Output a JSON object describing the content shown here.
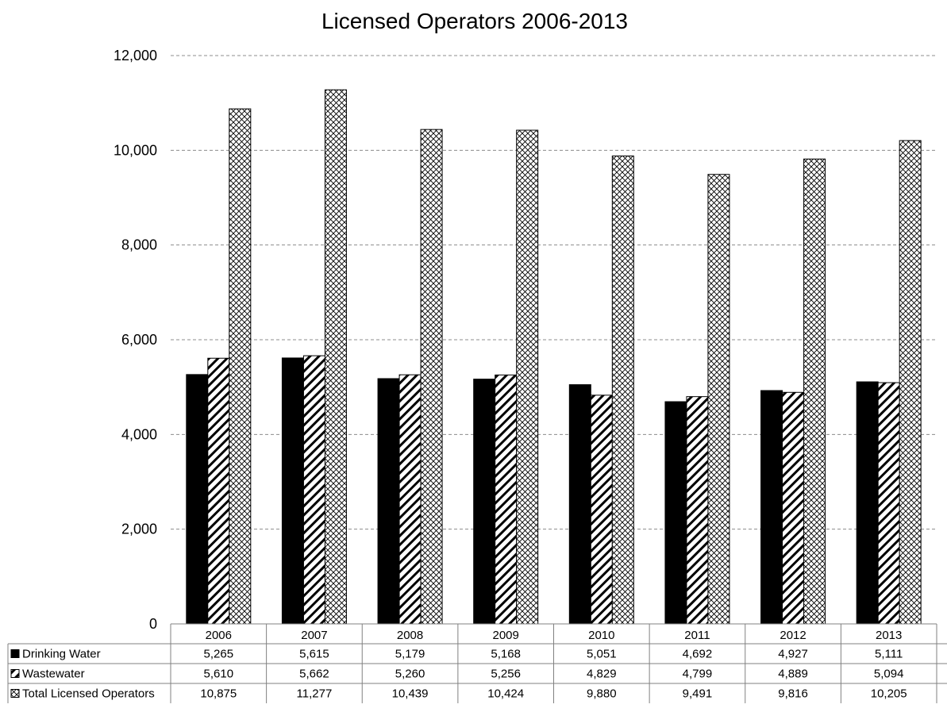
{
  "chart_data": {
    "type": "bar",
    "title": "Licensed Operators 2006-2013",
    "xlabel": "",
    "ylabel": "",
    "categories": [
      "2006",
      "2007",
      "2008",
      "2009",
      "2010",
      "2011",
      "2012",
      "2013"
    ],
    "ylim": [
      0,
      12000
    ],
    "yticks": [
      "0",
      "2,000",
      "4,000",
      "6,000",
      "8,000",
      "10,000",
      "12,000"
    ],
    "grid": true,
    "legend": "data-table",
    "series": [
      {
        "name": "Drinking Water",
        "pattern": "solid",
        "values": [
          5265,
          5615,
          5179,
          5168,
          5051,
          4692,
          4927,
          5111
        ],
        "labels": [
          "5,265",
          "5,615",
          "5,179",
          "5,168",
          "5,051",
          "4,692",
          "4,927",
          "5,111"
        ]
      },
      {
        "name": "Wastewater",
        "pattern": "diagonal-stripes",
        "values": [
          5610,
          5662,
          5260,
          5256,
          4829,
          4799,
          4889,
          5094
        ],
        "labels": [
          "5,610",
          "5,662",
          "5,260",
          "5,256",
          "4,829",
          "4,799",
          "4,889",
          "5,094"
        ]
      },
      {
        "name": "Total Licensed Operators",
        "pattern": "crosshatch",
        "values": [
          10875,
          11277,
          10439,
          10424,
          9880,
          9491,
          9816,
          10205
        ],
        "labels": [
          "10,875",
          "11,277",
          "10,439",
          "10,424",
          "9,880",
          "9,491",
          "9,816",
          "10,205"
        ]
      }
    ]
  },
  "colors": {
    "bar_fill": "#000000",
    "grid": "#8c8c8c",
    "axis": "#808080",
    "background": "#ffffff"
  }
}
